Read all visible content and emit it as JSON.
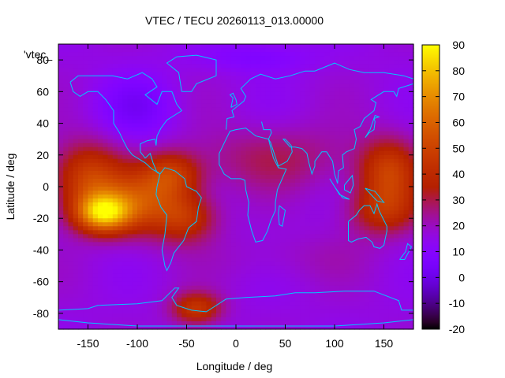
{
  "chart_data": {
    "type": "heatmap",
    "title": "VTEC / TECU 20260113_013.00000",
    "xlabel": "Longitude / deg",
    "ylabel": "Latitude / deg",
    "legend_key": "'vtec_",
    "xlim": [
      -180,
      180
    ],
    "ylim": [
      -90,
      90
    ],
    "x_ticks": [
      "-150",
      "-100",
      "-50",
      "0",
      "50",
      "100",
      "150"
    ],
    "y_ticks": [
      "-80",
      "-60",
      "-40",
      "-20",
      "0",
      "20",
      "40",
      "60",
      "80"
    ],
    "colorbar": {
      "min": -20,
      "max": 90,
      "ticks": [
        "-20",
        "-10",
        "0",
        "10",
        "20",
        "30",
        "40",
        "50",
        "60",
        "70",
        "80",
        "90"
      ],
      "palette": "gnuplot (black-purple-red-orange-yellow)"
    },
    "background_level": 16,
    "features": [
      {
        "lon": -150,
        "lat": 5,
        "value": 48,
        "rx": 35,
        "ry": 22
      },
      {
        "lon": -135,
        "lat": -17,
        "value": 70,
        "rx": 28,
        "ry": 12
      },
      {
        "lon": -95,
        "lat": -10,
        "value": 48,
        "rx": 45,
        "ry": 20
      },
      {
        "lon": -65,
        "lat": 8,
        "value": 42,
        "rx": 30,
        "ry": 14
      },
      {
        "lon": -50,
        "lat": -20,
        "value": 38,
        "rx": 30,
        "ry": 15
      },
      {
        "lon": 155,
        "lat": 10,
        "value": 46,
        "rx": 30,
        "ry": 20
      },
      {
        "lon": 150,
        "lat": -15,
        "value": 40,
        "rx": 35,
        "ry": 16
      },
      {
        "lon": -40,
        "lat": -77,
        "value": 44,
        "rx": 25,
        "ry": 10
      },
      {
        "lon": 40,
        "lat": 18,
        "value": 28,
        "rx": 80,
        "ry": 20
      },
      {
        "lon": -100,
        "lat": 50,
        "value": 5,
        "rx": 40,
        "ry": 20
      },
      {
        "lon": 20,
        "lat": 82,
        "value": 8,
        "rx": 60,
        "ry": 10
      },
      {
        "lon": 60,
        "lat": -45,
        "value": 20,
        "rx": 80,
        "ry": 15
      }
    ],
    "overlay": "coastlines",
    "coastline_color": "#00c8ff",
    "grid": false
  }
}
